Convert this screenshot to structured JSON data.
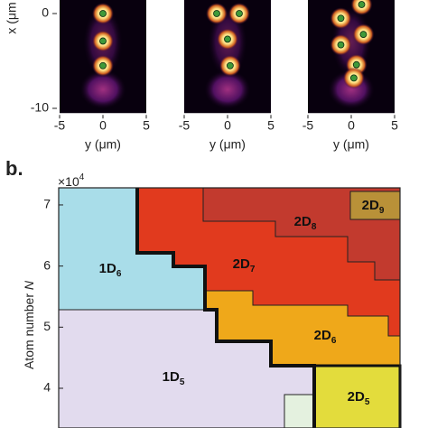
{
  "panel_a": {
    "ylabel": "x (μm",
    "ylim": [
      -10.5,
      1.5
    ],
    "yticks": [
      0,
      -10
    ],
    "xlim": [
      -5,
      5
    ],
    "xticks": [
      -5,
      0,
      5
    ],
    "panels": [
      {
        "xlabel": "y (μm)",
        "atoms": {
          "y": [
            0,
            0,
            0
          ],
          "x": [
            0,
            -2.9,
            -5.5
          ]
        }
      },
      {
        "xlabel": "y (μm)",
        "atoms": {
          "y": [
            -1.25,
            1.35,
            0,
            0.3
          ],
          "x": [
            0,
            0,
            -2.7,
            -5.5
          ]
        }
      },
      {
        "xlabel": "y (μm)",
        "atoms": {
          "y": [
            1.2,
            -1.2,
            1.4,
            -1.2,
            0.6,
            0.3
          ],
          "x": [
            0.95,
            -0.5,
            -2.2,
            -3.3,
            -5.4,
            -6.8
          ]
        }
      }
    ]
  },
  "panel_b": {
    "panel_label": "b.",
    "multiplier": {
      "base": "×10",
      "exp": "4"
    },
    "ylabel": "Atom number",
    "ylabel_var": "N",
    "ylim": [
      3.35,
      7.28
    ],
    "yticks": [
      4,
      5,
      6,
      7
    ],
    "regions": [
      {
        "main": "1D",
        "sub": "6"
      },
      {
        "main": "1D",
        "sub": "5"
      },
      {
        "main": "2D",
        "sub": "7"
      },
      {
        "main": "2D",
        "sub": "8"
      },
      {
        "main": "2D",
        "sub": "9"
      },
      {
        "main": "2D",
        "sub": "6"
      },
      {
        "main": "2D",
        "sub": "5"
      }
    ]
  }
}
